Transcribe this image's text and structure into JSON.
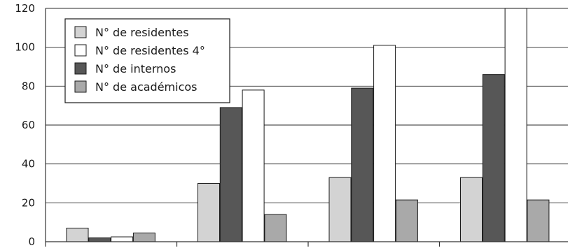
{
  "chart_data": {
    "type": "bar",
    "categories": [
      "",
      "",
      "",
      ""
    ],
    "series": [
      {
        "name": "N° de residentes",
        "color": "#d3d3d3",
        "values": [
          7,
          30,
          33,
          33
        ]
      },
      {
        "name": "N° de internos",
        "color": "#575757",
        "values": [
          2,
          69,
          79,
          86
        ]
      },
      {
        "name": "N° de residentes 4°",
        "color": "#ffffff",
        "values": [
          2.5,
          78,
          101,
          120
        ]
      },
      {
        "name": "N° de académicos",
        "color": "#a9a9a9",
        "values": [
          4.5,
          14,
          21.5,
          21.5
        ]
      }
    ],
    "legend": {
      "position": "top-left",
      "entries": [
        {
          "label": "N° de residentes",
          "color": "#d3d3d3"
        },
        {
          "label": "N° de residentes 4°",
          "color": "#ffffff"
        },
        {
          "label": "N° de internos",
          "color": "#575757"
        },
        {
          "label": "N° de académicos",
          "color": "#a9a9a9"
        }
      ]
    },
    "yticks": [
      0,
      20,
      40,
      60,
      80,
      100,
      120
    ],
    "ylim": [
      0,
      120
    ],
    "grid": "horizontal",
    "title": "",
    "xlabel": "",
    "ylabel": ""
  }
}
